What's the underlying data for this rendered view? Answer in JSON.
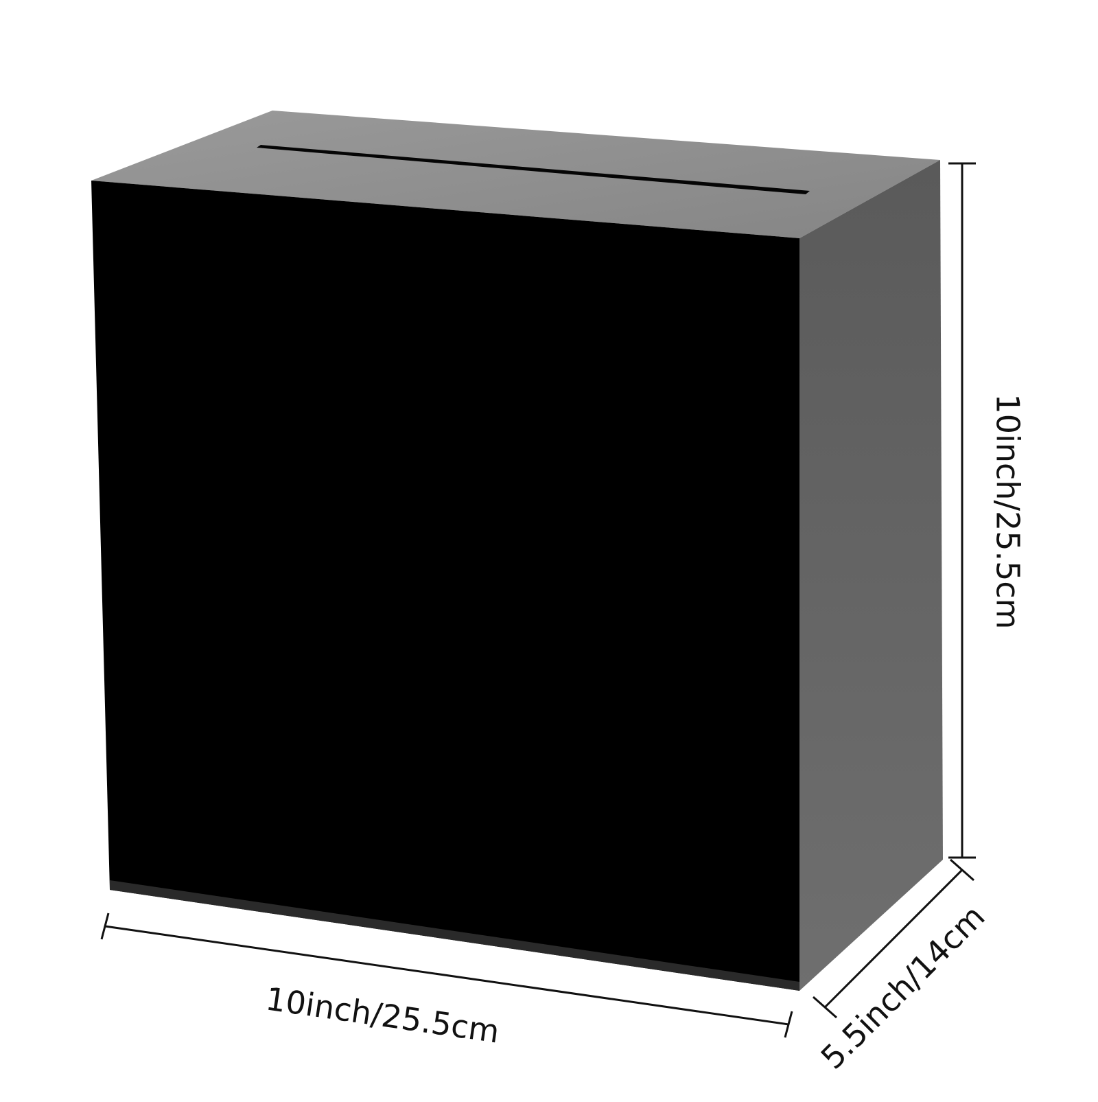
{
  "product": {
    "name": "black box with slot",
    "colors": {
      "front": "#000000",
      "top": "#8f8f8f",
      "side": "#6e6e6e",
      "edge": "#3a3a3a",
      "slot": "#000000",
      "line": "#111111"
    }
  },
  "dimensions": {
    "height": "10inch/25.5cm",
    "width": "10inch/25.5cm",
    "depth": "5.5inch/14cm"
  }
}
